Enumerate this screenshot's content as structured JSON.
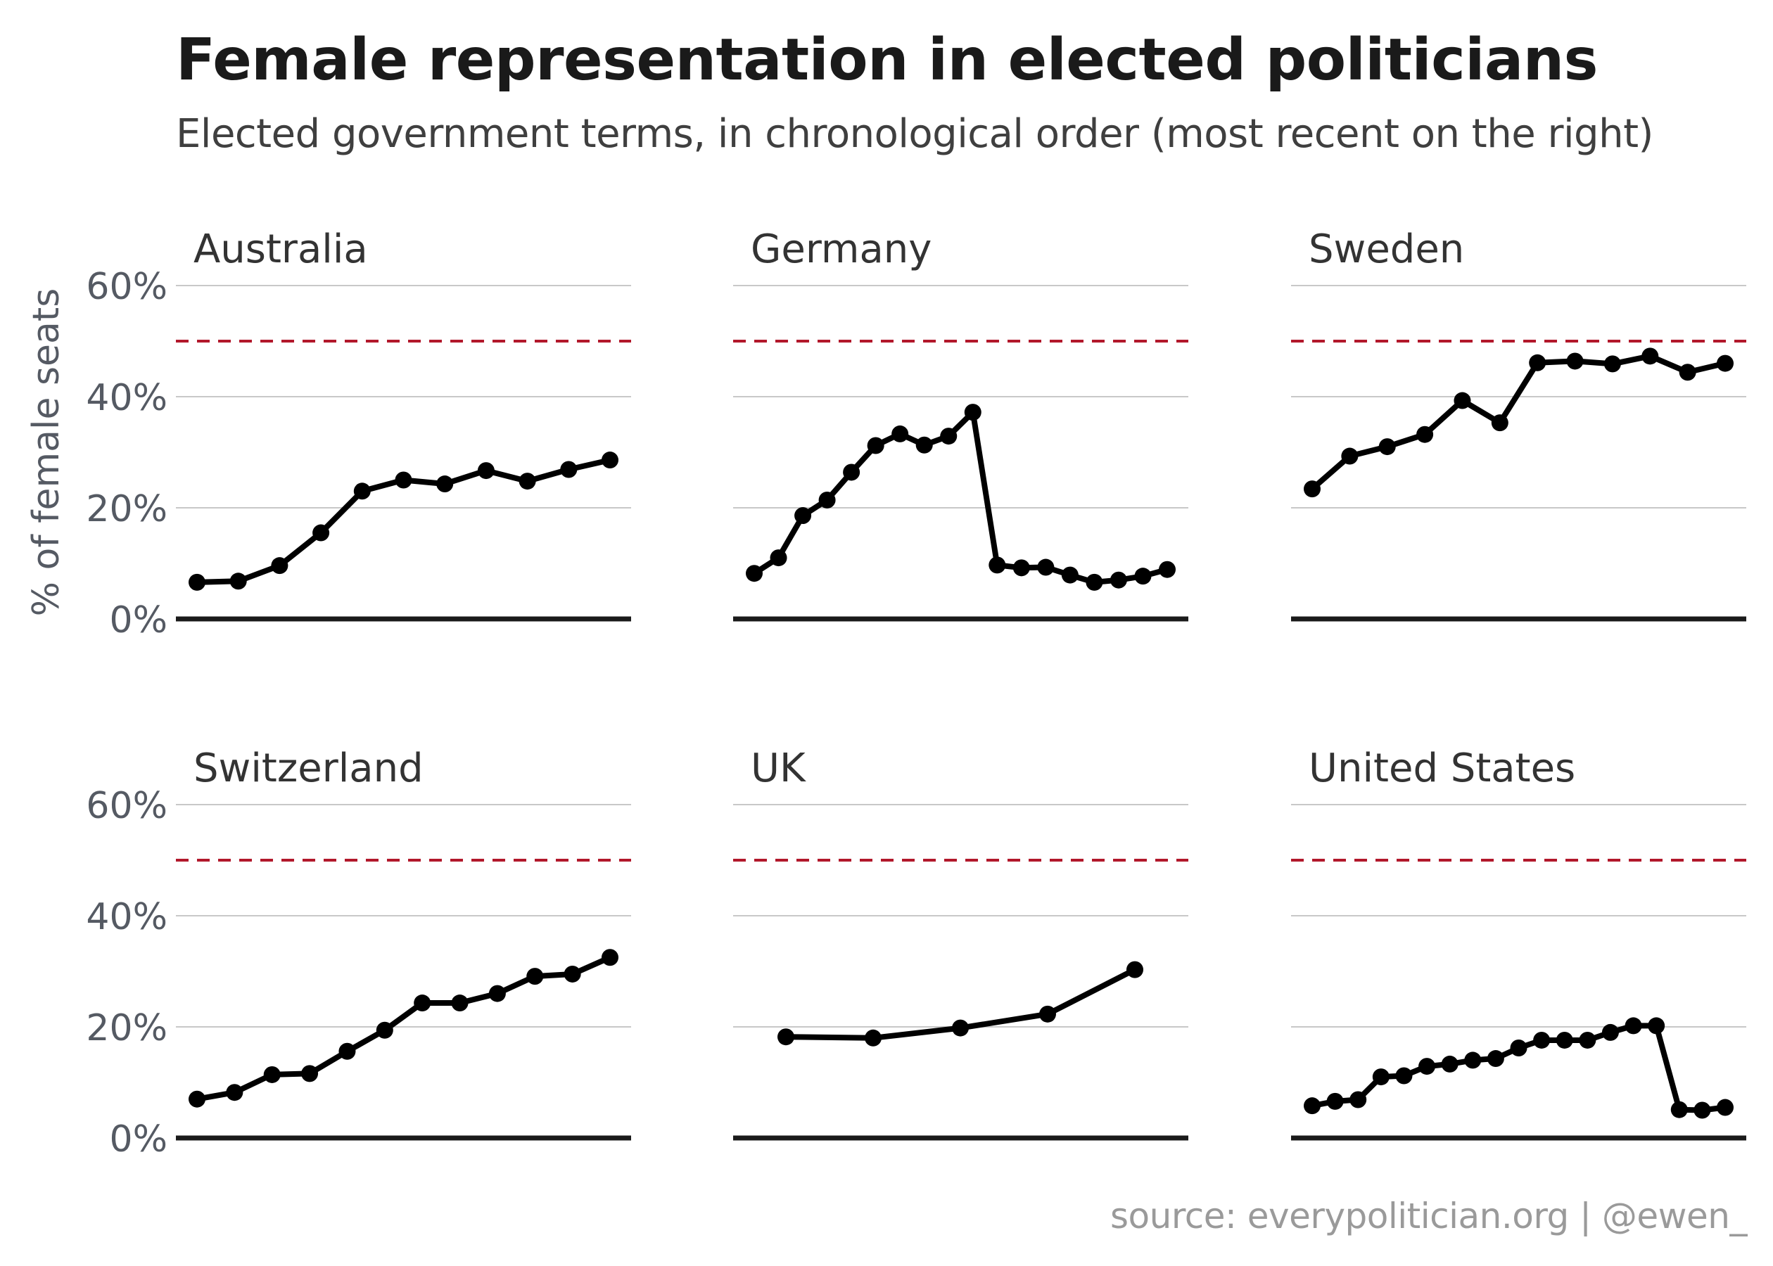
{
  "title": "Female representation in elected politicians",
  "subtitle": "Elected government terms, in chronological order (most recent on the right)",
  "source": "source: everypolitician.org | @ewen_",
  "colors": {
    "line": "#000000",
    "reference_line": "#b2182b",
    "grid": "#c8c8c8",
    "baseline": "#1a1a1a",
    "tick_text": "#555a63",
    "panel_title": "#333333"
  },
  "chart_data": {
    "type": "line",
    "layout": "small-multiples",
    "ylabel": "% of female seats",
    "ylim": [
      0,
      60
    ],
    "yticks": [
      "0%",
      "20%",
      "40%",
      "60%"
    ],
    "ytick_values": [
      0,
      20,
      40,
      60
    ],
    "reference_line": {
      "y": 50,
      "style": "dashed"
    },
    "grid": true,
    "xlabel": "",
    "panels": [
      {
        "name": "Australia",
        "values": [
          6.6,
          6.8,
          9.6,
          15.5,
          23.0,
          25.0,
          24.3,
          26.7,
          24.8,
          26.9,
          28.6
        ]
      },
      {
        "name": "Germany",
        "values": [
          8.2,
          11.0,
          18.6,
          21.4,
          26.4,
          31.2,
          33.3,
          31.3,
          32.9,
          37.2,
          9.7,
          9.2,
          9.3,
          7.9,
          6.6,
          7.0,
          7.7,
          8.9
        ]
      },
      {
        "name": "Sweden",
        "values": [
          23.4,
          29.3,
          31.0,
          33.2,
          39.3,
          35.3,
          46.1,
          46.4,
          45.9,
          47.3,
          44.4,
          46.0
        ]
      },
      {
        "name": "Switzerland",
        "values": [
          7.0,
          8.2,
          11.4,
          11.6,
          15.6,
          19.4,
          24.3,
          24.3,
          26.0,
          29.1,
          29.5,
          32.5
        ]
      },
      {
        "name": "UK",
        "values": [
          18.2,
          18.0,
          19.8,
          22.3,
          30.3
        ]
      },
      {
        "name": "United States",
        "values": [
          5.8,
          6.6,
          6.9,
          11.0,
          11.2,
          12.9,
          13.3,
          14.0,
          14.3,
          16.2,
          17.6,
          17.6,
          17.6,
          19.0,
          20.2,
          20.2,
          5.1,
          5.0,
          5.5
        ]
      }
    ]
  }
}
